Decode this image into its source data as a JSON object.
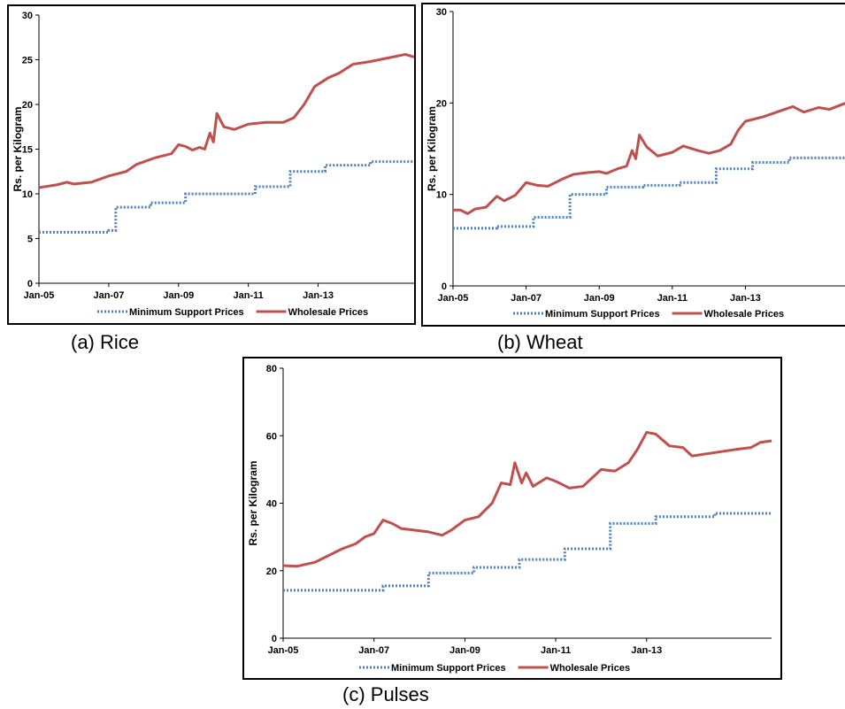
{
  "captions": [
    "(a) Rice",
    "(b) Wheat",
    "(c) Pulses"
  ],
  "chart_data": [
    {
      "type": "line",
      "name": "rice",
      "ylabel": "Rs. per Kilogram",
      "ylim": [
        0,
        30
      ],
      "yticks": [
        0,
        5,
        10,
        15,
        20,
        25,
        30
      ],
      "xlim": [
        2005.0,
        2015.75
      ],
      "xticks": [
        "Jan-05",
        "Jan-07",
        "Jan-09",
        "Jan-11",
        "Jan-13"
      ],
      "legend_placement": "bottom",
      "series": [
        {
          "name": "Minimum Support Prices",
          "style": "dotted",
          "color": "#4f81bd",
          "steps": [
            [
              2005.0,
              5.7
            ],
            [
              2007.0,
              5.9
            ],
            [
              2007.2,
              8.5
            ],
            [
              2008.2,
              9.0
            ],
            [
              2009.2,
              10.0
            ],
            [
              2011.2,
              10.8
            ],
            [
              2012.2,
              12.5
            ],
            [
              2013.2,
              13.2
            ],
            [
              2014.5,
              13.6
            ],
            [
              2015.75,
              13.6
            ]
          ]
        },
        {
          "name": "Wholesale Prices",
          "style": "solid",
          "color": "#c0504d",
          "points": [
            [
              2005.0,
              10.7
            ],
            [
              2005.5,
              11.0
            ],
            [
              2005.8,
              11.3
            ],
            [
              2006.0,
              11.1
            ],
            [
              2006.5,
              11.3
            ],
            [
              2007.0,
              12.0
            ],
            [
              2007.5,
              12.5
            ],
            [
              2007.8,
              13.3
            ],
            [
              2008.3,
              14.0
            ],
            [
              2008.8,
              14.5
            ],
            [
              2009.0,
              15.5
            ],
            [
              2009.2,
              15.3
            ],
            [
              2009.4,
              14.9
            ],
            [
              2009.6,
              15.2
            ],
            [
              2009.75,
              15.0
            ],
            [
              2009.9,
              16.8
            ],
            [
              2010.0,
              15.8
            ],
            [
              2010.1,
              19.0
            ],
            [
              2010.3,
              17.5
            ],
            [
              2010.6,
              17.2
            ],
            [
              2011.0,
              17.8
            ],
            [
              2011.5,
              18.0
            ],
            [
              2012.0,
              18.0
            ],
            [
              2012.3,
              18.5
            ],
            [
              2012.6,
              20.0
            ],
            [
              2012.9,
              22.0
            ],
            [
              2013.3,
              23.0
            ],
            [
              2013.6,
              23.5
            ],
            [
              2014.0,
              24.5
            ],
            [
              2014.5,
              24.8
            ],
            [
              2015.0,
              25.2
            ],
            [
              2015.5,
              25.6
            ],
            [
              2015.75,
              25.3
            ]
          ]
        }
      ]
    },
    {
      "type": "line",
      "name": "wheat",
      "ylabel": "Rs. per Kilogram",
      "ylim": [
        0,
        30
      ],
      "yticks": [
        0,
        10,
        20,
        30
      ],
      "xlim": [
        2005.0,
        2015.75
      ],
      "xticks": [
        "Jan-05",
        "Jan-07",
        "Jan-09",
        "Jan-11",
        "Jan-13"
      ],
      "legend_placement": "bottom",
      "series": [
        {
          "name": "Minimum Support Prices",
          "style": "dotted",
          "color": "#4f81bd",
          "steps": [
            [
              2005.0,
              6.3
            ],
            [
              2006.2,
              6.5
            ],
            [
              2007.2,
              7.5
            ],
            [
              2008.2,
              10.0
            ],
            [
              2009.2,
              10.8
            ],
            [
              2010.2,
              11.0
            ],
            [
              2011.2,
              11.3
            ],
            [
              2012.2,
              12.8
            ],
            [
              2013.2,
              13.5
            ],
            [
              2014.2,
              14.0
            ],
            [
              2015.75,
              14.0
            ]
          ]
        },
        {
          "name": "Wholesale Prices",
          "style": "solid",
          "color": "#c0504d",
          "points": [
            [
              2005.0,
              8.3
            ],
            [
              2005.2,
              8.3
            ],
            [
              2005.4,
              7.9
            ],
            [
              2005.6,
              8.4
            ],
            [
              2005.9,
              8.6
            ],
            [
              2006.2,
              9.8
            ],
            [
              2006.4,
              9.3
            ],
            [
              2006.7,
              9.9
            ],
            [
              2007.0,
              11.3
            ],
            [
              2007.3,
              11.0
            ],
            [
              2007.6,
              10.9
            ],
            [
              2008.0,
              11.7
            ],
            [
              2008.3,
              12.2
            ],
            [
              2008.7,
              12.4
            ],
            [
              2009.0,
              12.5
            ],
            [
              2009.2,
              12.3
            ],
            [
              2009.5,
              12.8
            ],
            [
              2009.75,
              13.1
            ],
            [
              2009.9,
              14.8
            ],
            [
              2010.0,
              13.9
            ],
            [
              2010.1,
              16.5
            ],
            [
              2010.3,
              15.2
            ],
            [
              2010.6,
              14.2
            ],
            [
              2011.0,
              14.6
            ],
            [
              2011.3,
              15.3
            ],
            [
              2011.7,
              14.8
            ],
            [
              2012.0,
              14.5
            ],
            [
              2012.3,
              14.8
            ],
            [
              2012.6,
              15.5
            ],
            [
              2012.8,
              17.0
            ],
            [
              2013.0,
              18.0
            ],
            [
              2013.5,
              18.5
            ],
            [
              2014.0,
              19.2
            ],
            [
              2014.3,
              19.6
            ],
            [
              2014.6,
              19.0
            ],
            [
              2015.0,
              19.5
            ],
            [
              2015.3,
              19.3
            ],
            [
              2015.75,
              20.0
            ]
          ]
        }
      ]
    },
    {
      "type": "line",
      "name": "pulses",
      "ylabel": "Rs. per Kilogram",
      "ylim": [
        0,
        80
      ],
      "yticks": [
        0,
        20,
        40,
        60,
        80
      ],
      "xlim": [
        2005.0,
        2015.75
      ],
      "xticks": [
        "Jan-05",
        "Jan-07",
        "Jan-09",
        "Jan-11",
        "Jan-13"
      ],
      "legend_placement": "bottom",
      "series": [
        {
          "name": "Minimum Support Prices",
          "style": "dotted",
          "color": "#4f81bd",
          "steps": [
            [
              2005.0,
              14.2
            ],
            [
              2007.2,
              15.5
            ],
            [
              2008.2,
              19.3
            ],
            [
              2009.2,
              21.0
            ],
            [
              2010.2,
              23.3
            ],
            [
              2011.2,
              26.5
            ],
            [
              2012.2,
              34.0
            ],
            [
              2013.2,
              36.0
            ],
            [
              2014.5,
              37.0
            ],
            [
              2015.75,
              37.0
            ]
          ]
        },
        {
          "name": "Wholesale Prices",
          "style": "solid",
          "color": "#c0504d",
          "points": [
            [
              2005.0,
              21.5
            ],
            [
              2005.3,
              21.3
            ],
            [
              2005.7,
              22.5
            ],
            [
              2006.0,
              24.5
            ],
            [
              2006.3,
              26.5
            ],
            [
              2006.6,
              28.0
            ],
            [
              2006.8,
              30.0
            ],
            [
              2007.0,
              31.0
            ],
            [
              2007.2,
              35.0
            ],
            [
              2007.4,
              34.0
            ],
            [
              2007.6,
              32.5
            ],
            [
              2007.9,
              32.0
            ],
            [
              2008.2,
              31.5
            ],
            [
              2008.5,
              30.5
            ],
            [
              2008.7,
              32.0
            ],
            [
              2009.0,
              35.0
            ],
            [
              2009.3,
              36.0
            ],
            [
              2009.6,
              40.0
            ],
            [
              2009.8,
              46.0
            ],
            [
              2010.0,
              45.5
            ],
            [
              2010.1,
              52.0
            ],
            [
              2010.25,
              46.0
            ],
            [
              2010.35,
              49.0
            ],
            [
              2010.5,
              45.0
            ],
            [
              2010.8,
              47.5
            ],
            [
              2011.0,
              46.5
            ],
            [
              2011.3,
              44.5
            ],
            [
              2011.6,
              45.0
            ],
            [
              2012.0,
              50.0
            ],
            [
              2012.3,
              49.5
            ],
            [
              2012.6,
              52.0
            ],
            [
              2012.8,
              56.0
            ],
            [
              2013.0,
              61.0
            ],
            [
              2013.2,
              60.5
            ],
            [
              2013.5,
              57.0
            ],
            [
              2013.8,
              56.5
            ],
            [
              2014.0,
              54.0
            ],
            [
              2014.5,
              55.0
            ],
            [
              2015.0,
              56.0
            ],
            [
              2015.3,
              56.5
            ],
            [
              2015.5,
              58.0
            ],
            [
              2015.75,
              58.5
            ]
          ]
        }
      ]
    }
  ]
}
